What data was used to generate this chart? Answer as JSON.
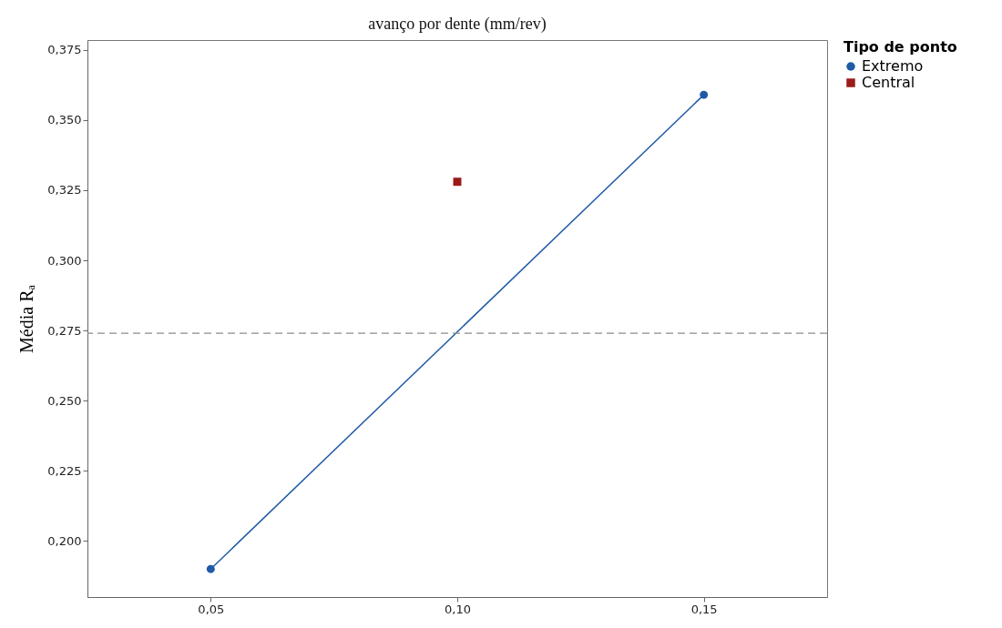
{
  "chart_data": {
    "type": "line",
    "title": "avanço por dente (mm/rev)",
    "xlabel": null,
    "ylabel": "Média Rₐ",
    "legend_title": "Tipo de ponto",
    "series": [
      {
        "name": "Extremo",
        "color": "#1f5aa6",
        "marker": "circle",
        "line_style": "solid",
        "x": [
          0.05,
          0.15
        ],
        "values": [
          0.19,
          0.359
        ]
      },
      {
        "name": "Central",
        "color": "#9b1b1b",
        "marker": "square",
        "line_style": "dashed",
        "x": [
          0.1
        ],
        "values": [
          0.328
        ]
      }
    ],
    "xlim": [
      0.025,
      0.175
    ],
    "xticks": [
      {
        "value": 0.05,
        "label": "0,05"
      },
      {
        "value": 0.1,
        "label": "0,10"
      },
      {
        "value": 0.15,
        "label": "0,15"
      }
    ],
    "ylim": [
      0.18,
      0.3785
    ],
    "yticks": [
      {
        "value": 0.2,
        "label": "0,200"
      },
      {
        "value": 0.225,
        "label": "0,225"
      },
      {
        "value": 0.25,
        "label": "0,250"
      },
      {
        "value": 0.275,
        "label": "0,275"
      },
      {
        "value": 0.3,
        "label": "0,300"
      },
      {
        "value": 0.325,
        "label": "0,325"
      },
      {
        "value": 0.35,
        "label": "0,350"
      },
      {
        "value": 0.375,
        "label": "0,375"
      }
    ],
    "ref_lines": [
      {
        "axis": "y",
        "value": 0.274,
        "color": "#8c8c8c",
        "line_style": "dashed"
      }
    ],
    "legend": "top right",
    "grid": false
  }
}
